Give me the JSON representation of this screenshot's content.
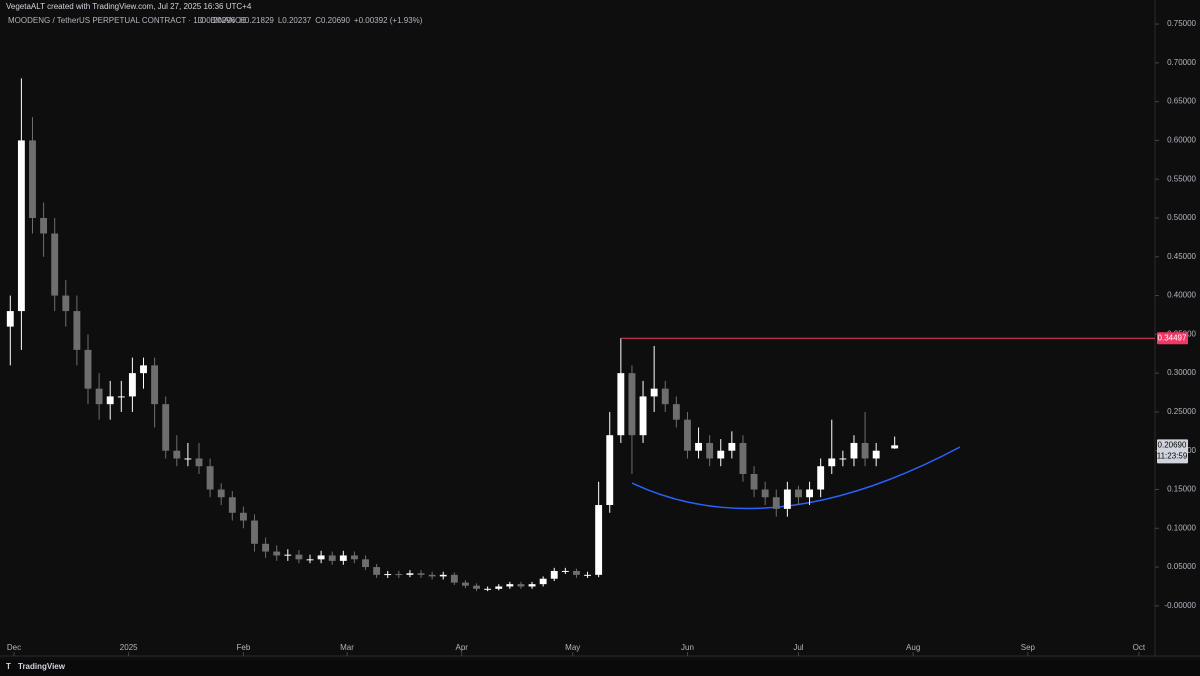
{
  "chart_data": {
    "type": "candlestick",
    "title": "VegetaALT created with TradingView.com, Jul 27, 2025 16:36 UTC+4",
    "subtitle": "MOODENG / TetherUS PERPETUAL CONTRACT · 1D · BINANCE",
    "legend_values": [
      "O0.20296",
      "H0.21829",
      "L0.20237",
      "C0.20690",
      "+0.00392 (+1.93%)"
    ],
    "footer": "TradingView",
    "up_color": "#ffffff",
    "down_color": "#6e6e6e",
    "grid": false,
    "xlim": [
      -2.78,
      308.0
    ],
    "xticks": [
      {
        "value": 1,
        "label": "Dec"
      },
      {
        "value": 32,
        "label": "2025"
      },
      {
        "value": 63,
        "label": "Feb"
      },
      {
        "value": 91,
        "label": "Mar"
      },
      {
        "value": 122,
        "label": "Apr"
      },
      {
        "value": 152,
        "label": "May"
      },
      {
        "value": 183,
        "label": "Jun"
      },
      {
        "value": 213,
        "label": "Jul"
      },
      {
        "value": 244,
        "label": "Aug"
      },
      {
        "value": 275,
        "label": "Sep"
      },
      {
        "value": 305,
        "label": "Oct"
      }
    ],
    "ylim": [
      -0.044,
      0.781
    ],
    "yticks": [
      {
        "value": 0,
        "label": "-0.00000"
      },
      {
        "value": 0.05,
        "label": "0.05000"
      },
      {
        "value": 0.1,
        "label": "0.10000"
      },
      {
        "value": 0.15,
        "label": "0.15000"
      },
      {
        "value": 0.2,
        "label": "0.20000"
      },
      {
        "value": 0.25,
        "label": "0.25000"
      },
      {
        "value": 0.3,
        "label": "0.30000"
      },
      {
        "value": 0.35,
        "label": "0.35000"
      },
      {
        "value": 0.4,
        "label": "0.40000"
      },
      {
        "value": 0.45,
        "label": "0.45000"
      },
      {
        "value": 0.5,
        "label": "0.50000"
      },
      {
        "value": 0.55,
        "label": "0.55000"
      },
      {
        "value": 0.6,
        "label": "0.60000"
      },
      {
        "value": 0.65,
        "label": "0.65000"
      },
      {
        "value": 0.7,
        "label": "0.70000"
      },
      {
        "value": 0.75,
        "label": "0.75000"
      }
    ],
    "level": {
      "value": 0.34497,
      "start_x": 165,
      "color": "#f23668"
    },
    "last_price": {
      "value": 0.2069,
      "label": "0.20690",
      "countdown": "11:23:59"
    },
    "series": [
      {
        "x": [
          0,
          3,
          6,
          9,
          12,
          15,
          18,
          21,
          24,
          27,
          30,
          33,
          36,
          39,
          42,
          45,
          48,
          51,
          54,
          57,
          60,
          63,
          66,
          69,
          72,
          75,
          78,
          81,
          84,
          87,
          90,
          93,
          96,
          99,
          102,
          105,
          108,
          111,
          114,
          117,
          120,
          123,
          126,
          129,
          132,
          135,
          138,
          141,
          144,
          147,
          150,
          153,
          156,
          159,
          162,
          165,
          168,
          171,
          174,
          177,
          180,
          183,
          186,
          189,
          192,
          195,
          198,
          201,
          204,
          207,
          210,
          213,
          216,
          219,
          222,
          225,
          228,
          231,
          234,
          239
        ],
        "open": [
          0.36,
          0.38,
          0.6,
          0.5,
          0.48,
          0.4,
          0.38,
          0.33,
          0.28,
          0.26,
          0.27,
          0.27,
          0.3,
          0.31,
          0.26,
          0.2,
          0.19,
          0.19,
          0.18,
          0.15,
          0.14,
          0.12,
          0.11,
          0.08,
          0.07,
          0.065,
          0.066,
          0.06,
          0.06,
          0.065,
          0.058,
          0.065,
          0.06,
          0.05,
          0.04,
          0.041,
          0.04,
          0.042,
          0.04,
          0.038,
          0.04,
          0.03,
          0.026,
          0.022,
          0.022,
          0.025,
          0.028,
          0.025,
          0.028,
          0.035,
          0.045,
          0.045,
          0.04,
          0.04,
          0.13,
          0.22,
          0.3,
          0.22,
          0.27,
          0.28,
          0.26,
          0.24,
          0.2,
          0.21,
          0.19,
          0.2,
          0.21,
          0.17,
          0.15,
          0.14,
          0.125,
          0.15,
          0.14,
          0.15,
          0.18,
          0.19,
          0.19,
          0.21,
          0.19,
          0.20296
        ],
        "high": [
          0.4,
          0.68,
          0.63,
          0.52,
          0.5,
          0.42,
          0.4,
          0.35,
          0.3,
          0.29,
          0.29,
          0.32,
          0.32,
          0.32,
          0.27,
          0.22,
          0.21,
          0.21,
          0.19,
          0.158,
          0.148,
          0.128,
          0.118,
          0.088,
          0.078,
          0.073,
          0.072,
          0.066,
          0.071,
          0.07,
          0.071,
          0.07,
          0.065,
          0.054,
          0.045,
          0.045,
          0.046,
          0.046,
          0.044,
          0.044,
          0.043,
          0.033,
          0.029,
          0.025,
          0.028,
          0.031,
          0.031,
          0.031,
          0.038,
          0.049,
          0.049,
          0.048,
          0.044,
          0.16,
          0.25,
          0.345,
          0.31,
          0.29,
          0.335,
          0.29,
          0.27,
          0.25,
          0.23,
          0.22,
          0.215,
          0.225,
          0.22,
          0.18,
          0.16,
          0.15,
          0.16,
          0.155,
          0.16,
          0.19,
          0.24,
          0.2,
          0.22,
          0.25,
          0.21,
          0.21829
        ],
        "low": [
          0.31,
          0.33,
          0.48,
          0.45,
          0.38,
          0.36,
          0.31,
          0.26,
          0.24,
          0.24,
          0.25,
          0.25,
          0.28,
          0.23,
          0.19,
          0.18,
          0.18,
          0.17,
          0.14,
          0.13,
          0.11,
          0.1,
          0.07,
          0.062,
          0.058,
          0.058,
          0.055,
          0.055,
          0.055,
          0.053,
          0.053,
          0.055,
          0.046,
          0.036,
          0.036,
          0.036,
          0.037,
          0.036,
          0.034,
          0.034,
          0.027,
          0.023,
          0.019,
          0.019,
          0.02,
          0.022,
          0.022,
          0.022,
          0.025,
          0.032,
          0.041,
          0.036,
          0.036,
          0.037,
          0.12,
          0.21,
          0.17,
          0.21,
          0.25,
          0.25,
          0.23,
          0.19,
          0.19,
          0.18,
          0.18,
          0.19,
          0.16,
          0.14,
          0.13,
          0.115,
          0.115,
          0.13,
          0.13,
          0.14,
          0.17,
          0.18,
          0.18,
          0.18,
          0.18,
          0.20237
        ],
        "close": [
          0.38,
          0.6,
          0.5,
          0.48,
          0.4,
          0.38,
          0.33,
          0.28,
          0.26,
          0.27,
          0.27,
          0.3,
          0.31,
          0.26,
          0.2,
          0.19,
          0.19,
          0.18,
          0.15,
          0.14,
          0.12,
          0.11,
          0.08,
          0.07,
          0.065,
          0.066,
          0.06,
          0.06,
          0.065,
          0.058,
          0.065,
          0.06,
          0.05,
          0.04,
          0.041,
          0.04,
          0.042,
          0.04,
          0.038,
          0.04,
          0.03,
          0.026,
          0.022,
          0.022,
          0.025,
          0.028,
          0.025,
          0.028,
          0.035,
          0.045,
          0.045,
          0.04,
          0.04,
          0.13,
          0.22,
          0.3,
          0.22,
          0.27,
          0.28,
          0.26,
          0.24,
          0.2,
          0.21,
          0.19,
          0.2,
          0.21,
          0.17,
          0.15,
          0.14,
          0.125,
          0.15,
          0.14,
          0.15,
          0.18,
          0.19,
          0.19,
          0.21,
          0.19,
          0.2,
          0.2069
        ]
      }
    ]
  }
}
